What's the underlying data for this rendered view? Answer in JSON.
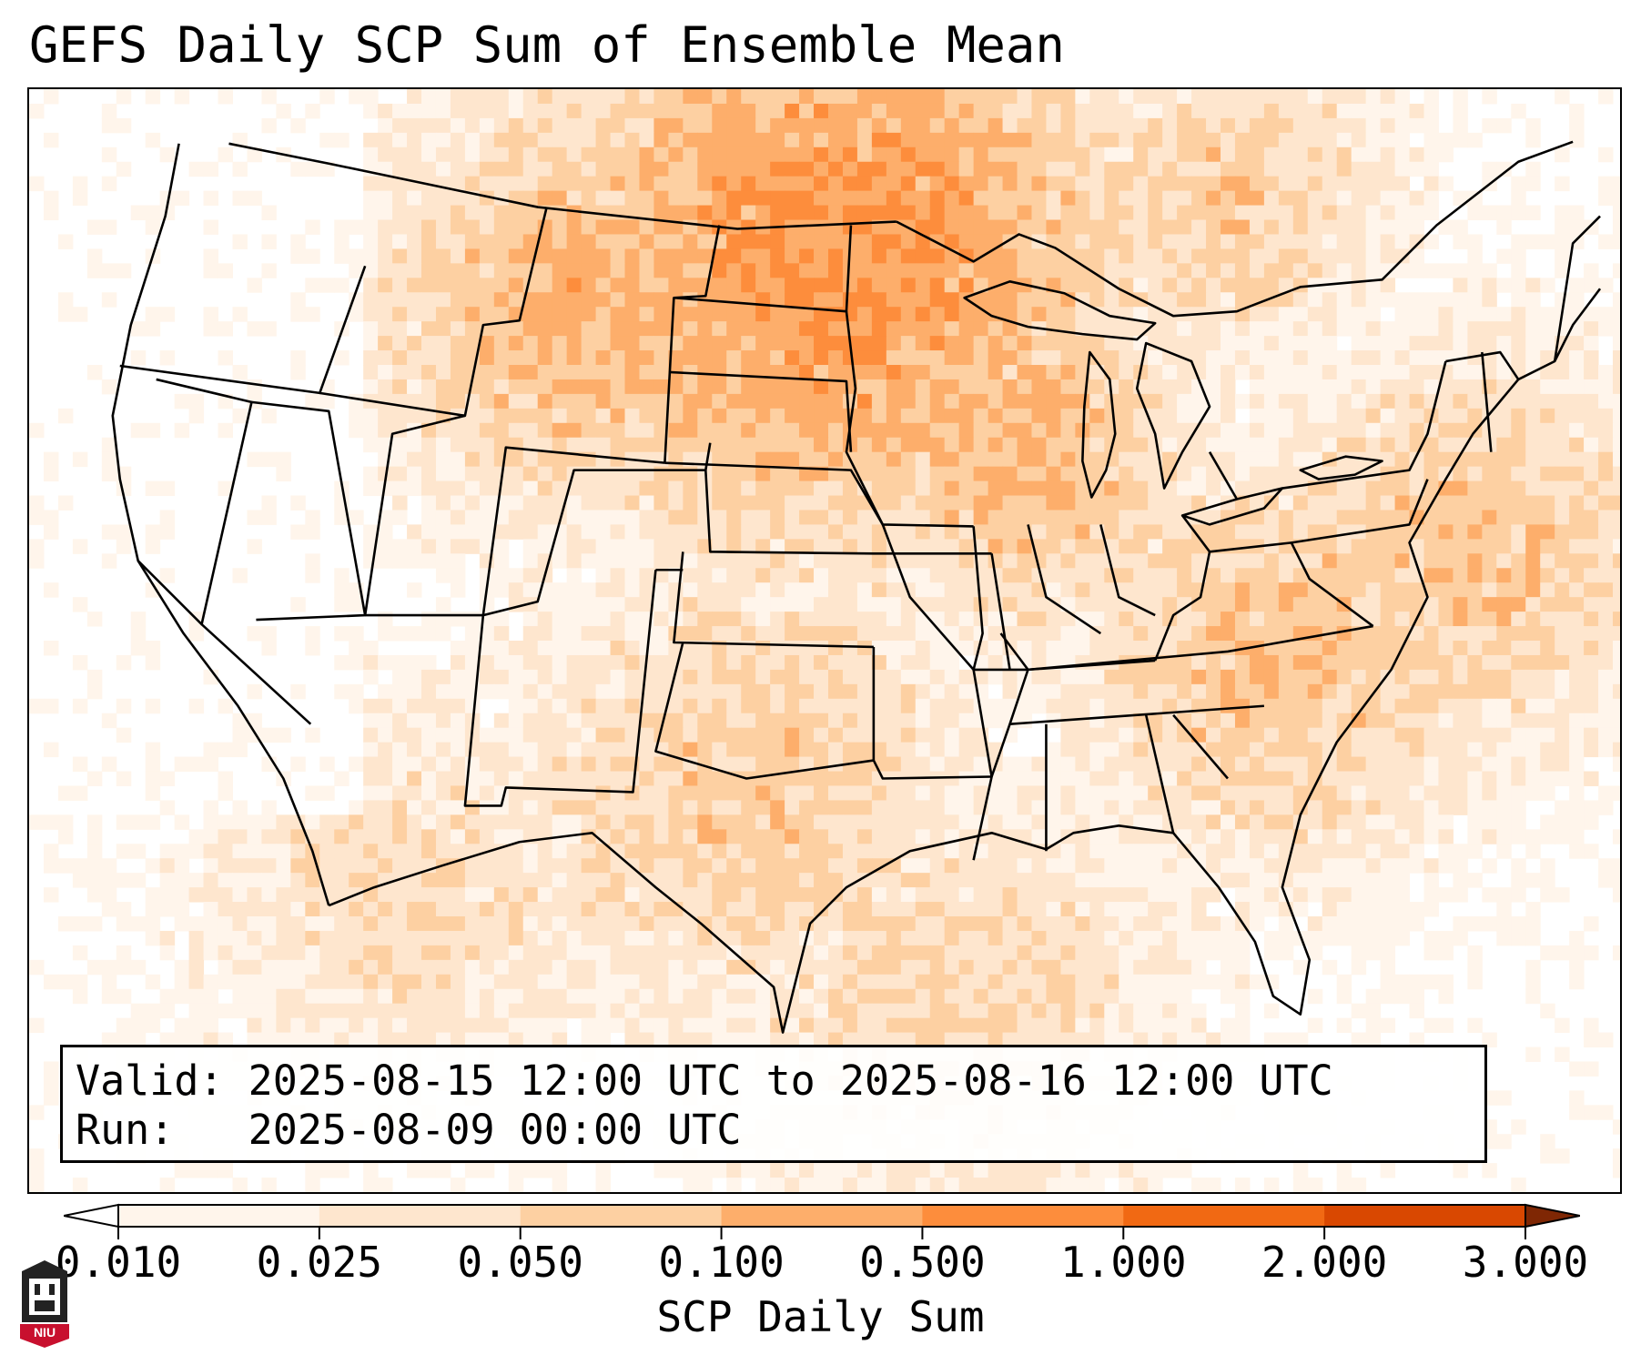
{
  "title": "GEFS Daily SCP Sum of Ensemble Mean",
  "info": {
    "valid_line": "Valid: 2025-08-15 12:00 UTC to 2025-08-16 12:00 UTC",
    "run_line": "Run:   2025-08-09 00:00 UTC"
  },
  "colorbar": {
    "label": "SCP Daily Sum",
    "ticks": [
      "0.010",
      "0.025",
      "0.050",
      "0.100",
      "0.500",
      "1.000",
      "2.000",
      "3.000"
    ],
    "colors": [
      "#fff5eb",
      "#fee6ce",
      "#fdd0a2",
      "#fdae6b",
      "#fd8d3c",
      "#f16913",
      "#d94801",
      "#a63603"
    ],
    "under_color": "#ffffff",
    "over_color": "#7f2704"
  },
  "logo": {
    "text": "NIU",
    "color": "#c8102e"
  }
}
